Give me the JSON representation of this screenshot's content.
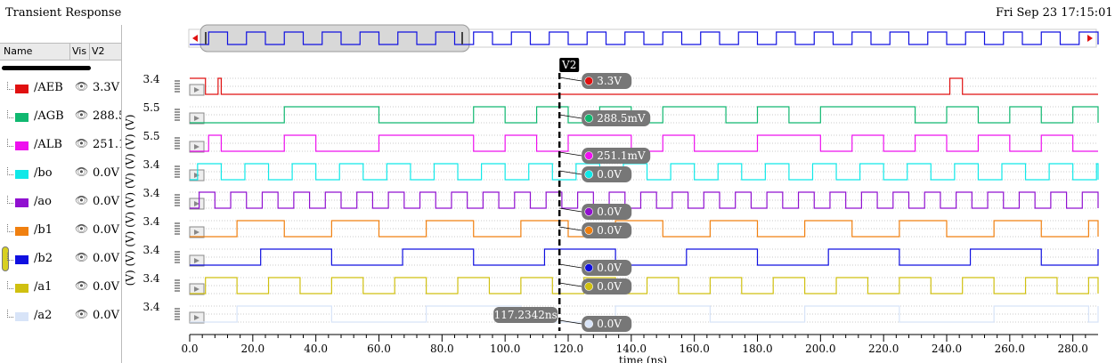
{
  "header": {
    "title": "Transient Response",
    "date": "Fri Sep 23 17:15:01 2022"
  },
  "columns": {
    "name": "Name",
    "vis": "Vis",
    "value": "V2"
  },
  "signals": [
    {
      "name": "/AEB",
      "value": "3.3V",
      "color": "#e01010",
      "cursor_value": "3.3V",
      "ymax": "3.4",
      "max_v": 3.4
    },
    {
      "name": "/AGB",
      "value": "288.5mV",
      "color": "#10b870",
      "cursor_value": "288.5mV",
      "ymax": "5.5",
      "max_v": 5.5
    },
    {
      "name": "/ALB",
      "value": "251.1mV",
      "color": "#ee10ee",
      "cursor_value": "251.1mV",
      "ymax": "5.5",
      "max_v": 5.5
    },
    {
      "name": "/bo",
      "value": "0.0V",
      "color": "#10e8e8",
      "cursor_value": "0.0V",
      "ymax": "3.4",
      "max_v": 3.4
    },
    {
      "name": "/ao",
      "value": "0.0V",
      "color": "#9010d0",
      "cursor_value": "0.0V",
      "ymax": "3.4",
      "max_v": 3.4
    },
    {
      "name": "/b1",
      "value": "0.0V",
      "color": "#f08010",
      "cursor_value": "0.0V",
      "ymax": "3.4",
      "max_v": 3.4
    },
    {
      "name": "/b2",
      "value": "0.0V",
      "color": "#1010e0",
      "cursor_value": "0.0V",
      "ymax": "3.4",
      "max_v": 3.4
    },
    {
      "name": "/a1",
      "value": "0.0V",
      "color": "#d0c010",
      "cursor_value": "0.0V",
      "ymax": "3.4",
      "max_v": 3.4
    },
    {
      "name": "/a2",
      "value": "0.0V",
      "color": "#d8e4f8",
      "cursor_value": "0.0V",
      "ymax": "3.4",
      "max_v": 3.4
    }
  ],
  "cursor": {
    "label": "V2",
    "time_label": "117.2342ns",
    "time": 117.2342
  },
  "y_unit_label": "(V)",
  "icons": {
    "visibility": "eye-icon",
    "expand": "play-icon"
  },
  "chart_data": {
    "type": "line",
    "x_label": "time (ns)",
    "x_range": [
      0,
      288
    ],
    "x_ticks": [
      "0.0",
      "20.0",
      "40.0",
      "60.0",
      "80.0",
      "100.0",
      "120.0",
      "140.0",
      "160.0",
      "180.0",
      "200.0",
      "220.0",
      "240.0",
      "260.0",
      "280.0"
    ],
    "series": [
      {
        "name": "/AEB",
        "max": 3.4,
        "edges": [
          [
            0,
            1
          ],
          [
            5,
            0
          ],
          [
            9,
            1
          ],
          [
            10,
            0
          ],
          [
            241,
            1
          ],
          [
            245,
            0
          ]
        ]
      },
      {
        "name": "/AGB",
        "max": 5.5,
        "edges": [
          [
            0,
            0
          ],
          [
            30,
            1
          ],
          [
            60,
            0
          ],
          [
            90,
            1
          ],
          [
            100,
            0
          ],
          [
            110,
            1
          ],
          [
            120,
            0
          ],
          [
            130,
            1
          ],
          [
            140,
            0
          ],
          [
            150,
            1
          ],
          [
            170,
            0
          ],
          [
            180,
            1
          ],
          [
            190,
            0
          ],
          [
            200,
            1
          ],
          [
            230,
            0
          ],
          [
            240,
            1
          ],
          [
            250,
            0
          ],
          [
            260,
            1
          ],
          [
            270,
            0
          ],
          [
            280,
            1
          ],
          [
            290,
            0
          ]
        ]
      },
      {
        "name": "/ALB",
        "max": 5.5,
        "edges": [
          [
            0,
            0
          ],
          [
            6,
            1
          ],
          [
            10,
            0
          ],
          [
            30,
            1
          ],
          [
            40,
            0
          ],
          [
            60,
            1
          ],
          [
            90,
            0
          ],
          [
            100,
            1
          ],
          [
            110,
            0
          ],
          [
            120,
            1
          ],
          [
            140,
            0
          ],
          [
            150,
            1
          ],
          [
            160,
            0
          ],
          [
            180,
            1
          ],
          [
            200,
            0
          ],
          [
            210,
            1
          ],
          [
            220,
            0
          ],
          [
            230,
            1
          ],
          [
            240,
            0
          ],
          [
            250,
            1
          ],
          [
            260,
            0
          ],
          [
            270,
            1
          ],
          [
            280,
            0
          ]
        ]
      },
      {
        "name": "/bo",
        "period": 15,
        "phase": 5
      },
      {
        "name": "/ao",
        "period": 10,
        "phase": 2
      },
      {
        "name": "/b1",
        "period": 30,
        "phase": 0
      },
      {
        "name": "/b2",
        "period": 45,
        "phase": 0
      },
      {
        "name": "/a1",
        "period": 20,
        "phase": 5
      },
      {
        "name": "/a2",
        "period": 60,
        "phase": 15
      }
    ]
  }
}
